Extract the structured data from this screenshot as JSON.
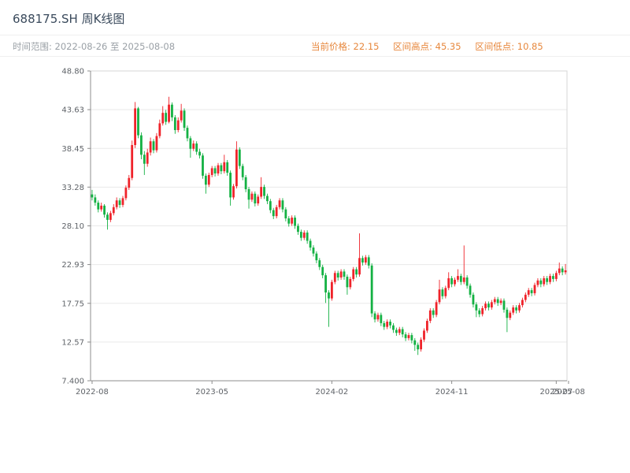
{
  "header": {
    "title": "688175.SH 周K线图",
    "date_range": "时间范围: 2022-08-26 至 2025-08-08",
    "accent_color": "#e7873c",
    "stats": {
      "current_price": "当前价格: 22.15",
      "range_high": "区间高点: 45.35",
      "range_low": "区间低点: 10.85"
    }
  },
  "chart_data": {
    "type": "candlestick",
    "title": "688175.SH 周K线图",
    "symbol": "688175.SH",
    "interval": "weekly",
    "start_date": "2022-08-26",
    "end_date": "2025-08-08",
    "current_price": 22.15,
    "range_high": 45.35,
    "range_low": 10.85,
    "ylim": [
      7.4,
      48.8
    ],
    "grid": "horizontal",
    "legend": "none",
    "xlabel": "",
    "ylabel": "",
    "colors": {
      "up": "#ef232a",
      "down": "#14b143"
    },
    "y_ticks": [
      "48.80",
      "43.63",
      "38.45",
      "33.28",
      "28.10",
      "22.93",
      "17.75",
      "12.57",
      "7.400"
    ],
    "x_ticks": [
      {
        "label": "2022-08",
        "week": 0
      },
      {
        "label": "2023-05",
        "week": 39
      },
      {
        "label": "2024-02",
        "week": 78
      },
      {
        "label": "2024-11",
        "week": 117
      },
      {
        "label": "2025-07",
        "week": 151
      },
      {
        "label": "2025-08",
        "week": 155
      }
    ],
    "candles": [
      [
        32.3,
        32.9,
        31.5,
        31.9
      ],
      [
        31.9,
        32.3,
        30.8,
        31.2
      ],
      [
        31.2,
        31.5,
        29.9,
        30.3
      ],
      [
        30.3,
        31.2,
        30.0,
        30.8
      ],
      [
        30.8,
        31.0,
        29.2,
        29.6
      ],
      [
        29.6,
        29.9,
        27.6,
        28.9
      ],
      [
        28.9,
        30.1,
        28.6,
        29.8
      ],
      [
        29.8,
        31.0,
        29.5,
        30.6
      ],
      [
        30.6,
        31.9,
        30.3,
        31.5
      ],
      [
        31.5,
        31.8,
        30.5,
        30.9
      ],
      [
        30.9,
        32.1,
        30.6,
        31.8
      ],
      [
        31.8,
        33.5,
        31.5,
        33.2
      ],
      [
        33.2,
        34.9,
        32.9,
        34.5
      ],
      [
        34.5,
        39.5,
        34.2,
        38.9
      ],
      [
        38.9,
        44.65,
        38.5,
        43.8
      ],
      [
        43.8,
        44.0,
        39.8,
        40.2
      ],
      [
        40.2,
        40.6,
        37.0,
        37.6
      ],
      [
        37.6,
        38.1,
        34.9,
        36.4
      ],
      [
        36.4,
        38.4,
        36.0,
        37.9
      ],
      [
        37.9,
        39.9,
        37.5,
        39.4
      ],
      [
        39.4,
        39.7,
        37.8,
        38.2
      ],
      [
        38.2,
        40.5,
        37.9,
        40.1
      ],
      [
        40.1,
        42.3,
        39.8,
        41.8
      ],
      [
        41.8,
        44.1,
        41.5,
        43.2
      ],
      [
        43.2,
        43.6,
        41.6,
        42.0
      ],
      [
        42.0,
        45.35,
        41.8,
        44.3
      ],
      [
        44.3,
        44.6,
        42.1,
        42.6
      ],
      [
        42.6,
        42.9,
        40.4,
        40.9
      ],
      [
        40.9,
        42.6,
        40.6,
        42.2
      ],
      [
        42.2,
        44.4,
        41.9,
        43.5
      ],
      [
        43.5,
        43.8,
        40.8,
        41.2
      ],
      [
        41.2,
        41.5,
        39.4,
        39.8
      ],
      [
        39.8,
        40.1,
        37.2,
        38.4
      ],
      [
        38.4,
        39.5,
        38.1,
        39.1
      ],
      [
        39.1,
        39.4,
        37.6,
        38.0
      ],
      [
        38.0,
        38.4,
        37.1,
        37.5
      ],
      [
        37.5,
        37.8,
        34.4,
        34.8
      ],
      [
        34.8,
        35.1,
        32.4,
        33.6
      ],
      [
        33.6,
        35.2,
        33.3,
        34.9
      ],
      [
        34.9,
        36.1,
        34.6,
        35.8
      ],
      [
        35.8,
        36.1,
        34.7,
        35.1
      ],
      [
        35.1,
        36.5,
        34.8,
        36.2
      ],
      [
        36.2,
        36.5,
        35.0,
        35.4
      ],
      [
        35.4,
        37.6,
        35.1,
        36.6
      ],
      [
        36.6,
        36.9,
        34.8,
        35.2
      ],
      [
        35.2,
        35.5,
        30.8,
        31.9
      ],
      [
        31.9,
        33.7,
        31.6,
        33.4
      ],
      [
        33.4,
        39.4,
        33.1,
        38.3
      ],
      [
        38.3,
        38.6,
        35.7,
        36.1
      ],
      [
        36.1,
        36.4,
        34.2,
        34.6
      ],
      [
        34.6,
        34.9,
        32.6,
        33.0
      ],
      [
        33.0,
        33.3,
        30.4,
        31.6
      ],
      [
        31.6,
        32.7,
        31.3,
        32.4
      ],
      [
        32.4,
        32.7,
        30.7,
        31.1
      ],
      [
        31.1,
        32.3,
        30.8,
        32.0
      ],
      [
        32.0,
        34.6,
        31.7,
        33.3
      ],
      [
        33.3,
        33.6,
        31.7,
        32.1
      ],
      [
        32.1,
        32.4,
        31.0,
        31.4
      ],
      [
        31.4,
        31.7,
        29.8,
        30.2
      ],
      [
        30.2,
        30.5,
        29.0,
        29.4
      ],
      [
        29.4,
        30.9,
        29.1,
        30.6
      ],
      [
        30.6,
        31.8,
        30.3,
        31.5
      ],
      [
        31.5,
        31.8,
        29.9,
        30.3
      ],
      [
        30.3,
        30.6,
        28.7,
        29.1
      ],
      [
        29.1,
        29.4,
        28.0,
        28.4
      ],
      [
        28.4,
        29.5,
        28.1,
        29.2
      ],
      [
        29.2,
        29.5,
        27.7,
        28.1
      ],
      [
        28.1,
        28.4,
        26.9,
        27.3
      ],
      [
        27.3,
        27.6,
        26.1,
        26.5
      ],
      [
        26.5,
        27.5,
        26.2,
        27.2
      ],
      [
        27.2,
        27.5,
        25.7,
        26.1
      ],
      [
        26.1,
        26.4,
        24.8,
        25.2
      ],
      [
        25.2,
        25.5,
        24.0,
        24.4
      ],
      [
        24.4,
        24.7,
        23.1,
        23.5
      ],
      [
        23.5,
        23.8,
        22.2,
        22.6
      ],
      [
        22.6,
        22.9,
        21.1,
        21.5
      ],
      [
        21.5,
        21.8,
        17.8,
        19.2
      ],
      [
        19.2,
        19.5,
        14.6,
        18.4
      ],
      [
        18.4,
        20.9,
        18.1,
        20.6
      ],
      [
        20.6,
        22.1,
        20.3,
        21.8
      ],
      [
        21.8,
        22.1,
        20.8,
        21.2
      ],
      [
        21.2,
        22.3,
        20.9,
        22.0
      ],
      [
        22.0,
        22.3,
        20.9,
        21.3
      ],
      [
        21.3,
        21.6,
        18.9,
        19.9
      ],
      [
        19.9,
        21.3,
        19.6,
        21.0
      ],
      [
        21.0,
        22.6,
        20.7,
        22.3
      ],
      [
        22.3,
        22.6,
        21.2,
        21.6
      ],
      [
        21.6,
        27.1,
        21.3,
        23.8
      ],
      [
        23.8,
        24.1,
        22.8,
        23.2
      ],
      [
        23.2,
        24.2,
        22.9,
        23.9
      ],
      [
        23.9,
        24.2,
        22.4,
        22.8
      ],
      [
        22.8,
        23.1,
        15.9,
        16.4
      ],
      [
        16.4,
        16.7,
        15.2,
        15.6
      ],
      [
        15.6,
        16.5,
        15.3,
        16.2
      ],
      [
        16.2,
        16.5,
        14.7,
        15.1
      ],
      [
        15.1,
        15.4,
        14.2,
        14.6
      ],
      [
        14.6,
        15.6,
        14.3,
        15.3
      ],
      [
        15.3,
        15.6,
        14.4,
        14.8
      ],
      [
        14.8,
        15.1,
        13.8,
        14.2
      ],
      [
        14.2,
        14.5,
        13.4,
        13.8
      ],
      [
        13.8,
        14.6,
        13.5,
        14.3
      ],
      [
        14.3,
        14.6,
        13.2,
        13.6
      ],
      [
        13.6,
        13.9,
        12.7,
        13.1
      ],
      [
        13.1,
        13.8,
        12.8,
        13.5
      ],
      [
        13.5,
        13.8,
        12.4,
        12.8
      ],
      [
        12.8,
        13.1,
        11.4,
        12.2
      ],
      [
        12.2,
        12.5,
        10.85,
        11.6
      ],
      [
        11.6,
        13.2,
        11.3,
        12.9
      ],
      [
        12.9,
        14.4,
        12.6,
        14.1
      ],
      [
        14.1,
        15.7,
        13.8,
        15.4
      ],
      [
        15.4,
        17.1,
        15.1,
        16.8
      ],
      [
        16.8,
        17.1,
        15.8,
        16.2
      ],
      [
        16.2,
        18.2,
        15.9,
        17.9
      ],
      [
        17.9,
        20.9,
        17.6,
        19.6
      ],
      [
        19.6,
        19.9,
        18.3,
        18.7
      ],
      [
        18.7,
        20.1,
        18.4,
        19.8
      ],
      [
        19.8,
        21.9,
        19.5,
        21.1
      ],
      [
        21.1,
        21.4,
        19.9,
        20.3
      ],
      [
        20.3,
        21.2,
        20.0,
        20.9
      ],
      [
        20.9,
        22.3,
        20.6,
        21.4
      ],
      [
        21.4,
        21.7,
        20.2,
        20.6
      ],
      [
        20.6,
        25.48,
        20.3,
        21.2
      ],
      [
        21.2,
        21.5,
        19.7,
        20.1
      ],
      [
        20.1,
        20.4,
        18.5,
        18.9
      ],
      [
        18.9,
        19.2,
        17.2,
        17.6
      ],
      [
        17.6,
        17.9,
        15.9,
        16.8
      ],
      [
        16.8,
        17.1,
        15.9,
        16.3
      ],
      [
        16.3,
        17.4,
        16.0,
        17.1
      ],
      [
        17.1,
        18.0,
        16.8,
        17.7
      ],
      [
        17.7,
        18.0,
        16.8,
        17.2
      ],
      [
        17.2,
        18.2,
        16.9,
        17.9
      ],
      [
        17.9,
        18.6,
        17.6,
        18.3
      ],
      [
        18.3,
        18.6,
        17.4,
        17.8
      ],
      [
        17.8,
        18.4,
        17.5,
        18.1
      ],
      [
        18.1,
        18.4,
        16.5,
        16.9
      ],
      [
        16.9,
        17.2,
        13.9,
        15.8
      ],
      [
        15.8,
        16.8,
        15.5,
        16.5
      ],
      [
        16.5,
        17.5,
        16.2,
        17.2
      ],
      [
        17.2,
        17.5,
        16.4,
        16.8
      ],
      [
        16.8,
        17.8,
        16.5,
        17.5
      ],
      [
        17.5,
        18.5,
        17.2,
        18.2
      ],
      [
        18.2,
        19.2,
        17.9,
        18.9
      ],
      [
        18.9,
        19.8,
        18.6,
        19.5
      ],
      [
        19.5,
        19.8,
        18.7,
        19.1
      ],
      [
        19.1,
        20.5,
        18.8,
        20.2
      ],
      [
        20.2,
        21.1,
        19.9,
        20.8
      ],
      [
        20.8,
        21.1,
        19.9,
        20.3
      ],
      [
        20.3,
        21.4,
        20.0,
        21.1
      ],
      [
        21.1,
        21.4,
        20.2,
        20.6
      ],
      [
        20.6,
        21.7,
        20.3,
        21.4
      ],
      [
        21.4,
        21.7,
        20.6,
        21.0
      ],
      [
        21.0,
        22.1,
        20.7,
        21.8
      ],
      [
        21.8,
        23.2,
        21.5,
        22.4
      ],
      [
        22.4,
        22.7,
        21.5,
        21.9
      ],
      [
        21.9,
        23.0,
        21.6,
        22.15
      ]
    ]
  }
}
